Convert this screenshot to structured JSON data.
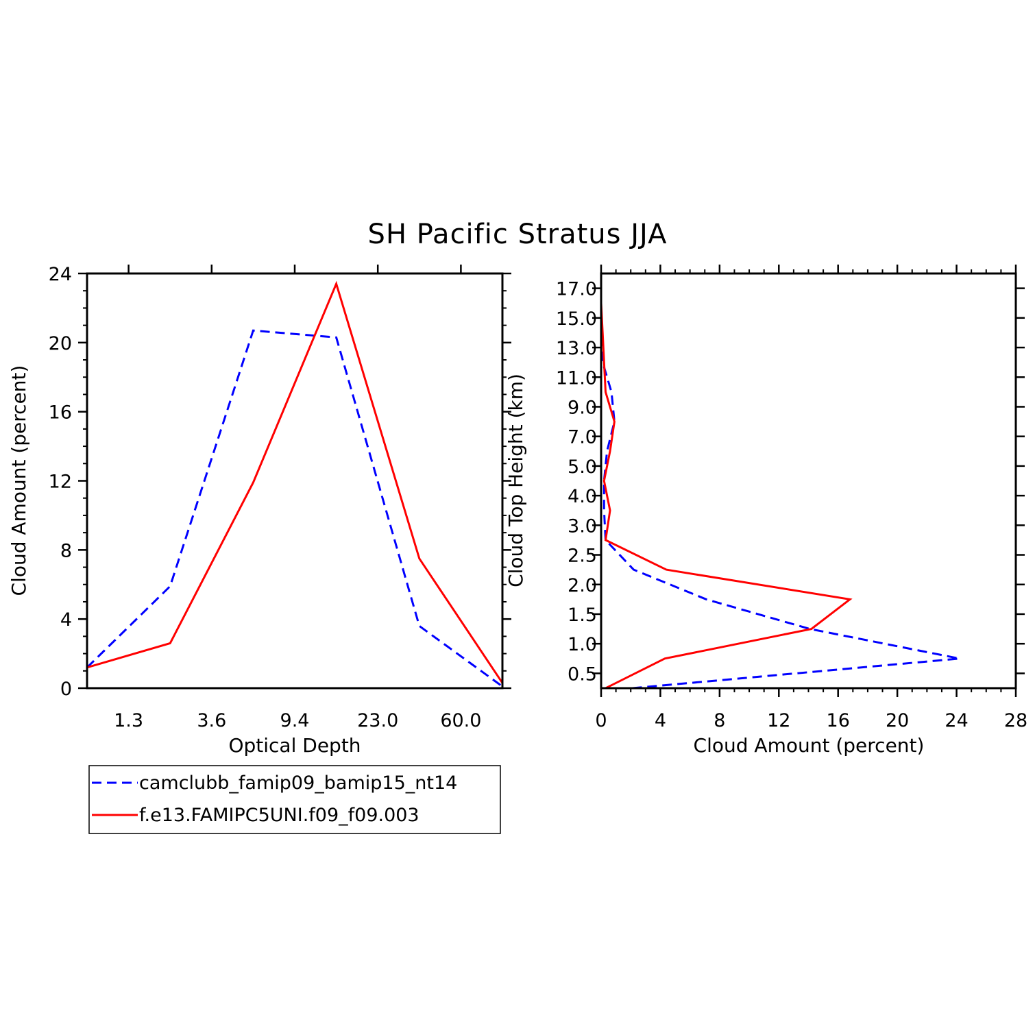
{
  "figure": {
    "title": "SH Pacific Stratus JJA"
  },
  "legend": {
    "entries": [
      {
        "label": "camclubb_famip09_bamip15_nt14",
        "color": "#0000ff",
        "style": "dashed"
      },
      {
        "label": "f.e13.FAMIPC5UNI.f09_f09.003",
        "color": "#ff0000",
        "style": "solid"
      }
    ]
  },
  "chart_data": [
    {
      "type": "line",
      "xlabel": "Optical Depth",
      "ylabel": "Cloud Amount (percent)",
      "x_tick_labels": [
        "1.3",
        "3.6",
        "9.4",
        "23.0",
        "60.0"
      ],
      "ylim": [
        0,
        24
      ],
      "y_ticks": [
        "0",
        "4",
        "8",
        "12",
        "16",
        "20",
        "24"
      ],
      "series": [
        {
          "name": "camclubb_famip09_bamip15_nt14",
          "color": "#0000ff",
          "style": "dashed",
          "values": [
            1.2,
            5.9,
            20.7,
            20.3,
            3.6,
            0.1
          ]
        },
        {
          "name": "f.e13.FAMIPC5UNI.f09_f09.003",
          "color": "#ff0000",
          "style": "solid",
          "values": [
            1.2,
            2.6,
            11.9,
            23.4,
            7.5,
            0.3
          ]
        }
      ],
      "grid": false
    },
    {
      "type": "line",
      "xlabel": "Cloud Amount (percent)",
      "ylabel": "Cloud Top Height (km)",
      "xlim": [
        0,
        28
      ],
      "x_ticks": [
        "0",
        "4",
        "8",
        "12",
        "16",
        "20",
        "24",
        "28"
      ],
      "y_tick_labels": [
        "0.5",
        "1.0",
        "1.5",
        "2.0",
        "2.5",
        "3.0",
        "4.0",
        "5.0",
        "7.0",
        "9.0",
        "11.0",
        "13.0",
        "15.0",
        "17.0"
      ],
      "series": [
        {
          "name": "camclubb_famip09_bamip15_nt14",
          "color": "#0000ff",
          "style": "dashed",
          "y": [
            "0.5",
            "1.0",
            "1.5",
            "2.0",
            "2.5",
            "3.0",
            "4.0",
            "5.0",
            "7.0",
            "9.0",
            "11.0",
            "13.0",
            "15.0",
            "17.0"
          ],
          "values": [
            2.1,
            24.2,
            14.1,
            7.1,
            2.2,
            0.3,
            0.2,
            0.2,
            0.4,
            0.9,
            0.7,
            0.1,
            0.0,
            0.0
          ]
        },
        {
          "name": "f.e13.FAMIPC5UNI.f09_f09.003",
          "color": "#ff0000",
          "style": "solid",
          "y": [
            "0.5",
            "1.0",
            "1.5",
            "2.0",
            "2.5",
            "3.0",
            "4.0",
            "5.0",
            "7.0",
            "9.0",
            "11.0",
            "13.0",
            "15.0",
            "17.0"
          ],
          "values": [
            0.3,
            4.3,
            14.2,
            16.8,
            4.4,
            0.3,
            0.6,
            0.2,
            0.6,
            0.9,
            0.3,
            0.2,
            0.1,
            0.0
          ]
        }
      ],
      "grid": false
    }
  ]
}
